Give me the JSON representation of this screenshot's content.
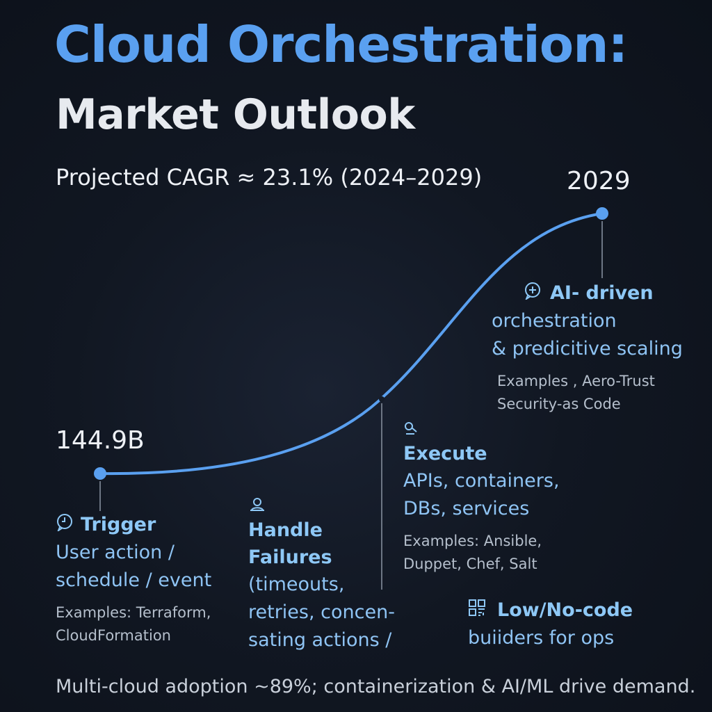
{
  "title_line1": "Cloud Orchestration:",
  "title_line2": "Market Outlook",
  "subtitle": "Projected CAGR ≈ 23.1% (2024–2029)",
  "chart_data": {
    "type": "line",
    "start_label": "144.9B",
    "end_label": "2029",
    "line_color": "#5aa0f0"
  },
  "stages": {
    "trigger": {
      "icon": "clock-bubble-icon",
      "title": "Trigger",
      "desc": "User action /\nschedule / event",
      "examples": "Examples: Terraform,\nCloudFormation"
    },
    "failures": {
      "icon": "person-handle-icon",
      "title": "Handle\nFailures",
      "desc": "(timeouts,\nretries, concen-\nsating actions /"
    },
    "execute": {
      "icon": "key-icon",
      "title": "Execute",
      "desc": "APIs, containers,\nDBs, services",
      "examples": "Examples: Ansible,\nDuppet, Chef, Salt"
    },
    "ai": {
      "icon": "ai-bubble-icon",
      "title": "AI- driven",
      "desc": "orchestration\n& predicitive scaling",
      "examples": "Examples , Aero-Trust\n   Security-as Code"
    },
    "lowcode": {
      "icon": "grid-icon",
      "title": "Low/No-code",
      "desc": "buiiders for ops"
    }
  },
  "footer": "Multi-cloud adoption ~89%; containerization & AI/ML drive demand."
}
